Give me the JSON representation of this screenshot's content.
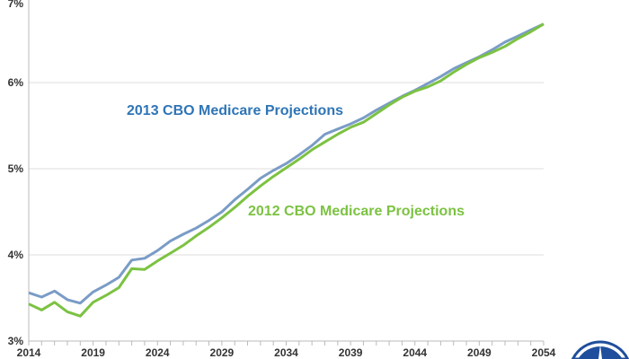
{
  "chart_data": {
    "type": "line",
    "title": "",
    "xlabel": "",
    "ylabel": "",
    "xlim": [
      2014,
      2054
    ],
    "ylim": [
      3,
      7
    ],
    "x_tick_labels": [
      "2014",
      "2019",
      "2024",
      "2029",
      "2034",
      "2039",
      "2044",
      "2049",
      "2054"
    ],
    "y_tick_labels": [
      "3%",
      "4%",
      "5%",
      "6%",
      "7%"
    ],
    "grid": "horizontal",
    "x": [
      2014,
      2015,
      2016,
      2017,
      2018,
      2019,
      2020,
      2021,
      2022,
      2023,
      2024,
      2025,
      2026,
      2027,
      2028,
      2029,
      2030,
      2031,
      2032,
      2033,
      2034,
      2035,
      2036,
      2037,
      2038,
      2039,
      2040,
      2041,
      2042,
      2043,
      2044,
      2045,
      2046,
      2047,
      2048,
      2049,
      2050,
      2051,
      2052,
      2053,
      2054
    ],
    "series": [
      {
        "name": "2013 CBO Medicare Projections",
        "color": "#7a9cc6",
        "label_color": "#2e75b6",
        "values": [
          3.56,
          3.51,
          3.58,
          3.48,
          3.44,
          3.57,
          3.65,
          3.74,
          3.94,
          3.96,
          4.05,
          4.16,
          4.24,
          4.31,
          4.4,
          4.5,
          4.64,
          4.76,
          4.89,
          4.98,
          5.06,
          5.16,
          5.27,
          5.4,
          5.46,
          5.52,
          5.59,
          5.68,
          5.76,
          5.84,
          5.91,
          5.99,
          6.07,
          6.16,
          6.23,
          6.3,
          6.38,
          6.47,
          6.54,
          6.61,
          6.68
        ]
      },
      {
        "name": "2012 CBO Medicare Projections",
        "color": "#7cc242",
        "label_color": "#7cc242",
        "values": [
          3.43,
          3.36,
          3.45,
          3.34,
          3.29,
          3.45,
          3.53,
          3.62,
          3.84,
          3.83,
          3.93,
          4.02,
          4.11,
          4.22,
          4.32,
          4.43,
          4.55,
          4.68,
          4.8,
          4.91,
          5.01,
          5.11,
          5.22,
          5.31,
          5.4,
          5.48,
          5.54,
          5.64,
          5.74,
          5.83,
          5.9,
          5.95,
          6.02,
          6.12,
          6.21,
          6.29,
          6.35,
          6.42,
          6.51,
          6.59,
          6.68
        ]
      }
    ]
  },
  "logo": {
    "name": "seal-logo",
    "color": "#1f4e9c"
  }
}
